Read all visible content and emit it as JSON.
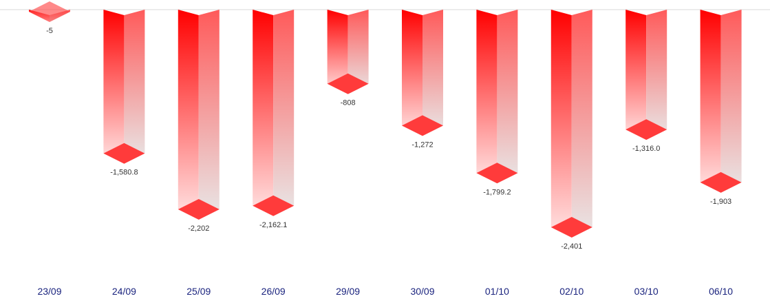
{
  "chart_data": {
    "type": "bar",
    "title": "",
    "xlabel": "",
    "ylabel": "",
    "categories": [
      "23/09",
      "24/09",
      "25/09",
      "26/09",
      "29/09",
      "30/09",
      "01/10",
      "02/10",
      "03/10",
      "06/10"
    ],
    "values": [
      -5,
      -1580.8,
      -2202,
      -2162.1,
      -808,
      -1272,
      -1799.2,
      -2401,
      -1316.0,
      -1903
    ],
    "value_labels": [
      "-5",
      "-1,580.8",
      "-2,202",
      "-2,162.1",
      "-808",
      "-1,272",
      "-1,799.2",
      "-2,401",
      "-1,316.0",
      "-1,903"
    ],
    "ylim": [
      -2401,
      0
    ],
    "grid": false,
    "legend": "none",
    "colors": {
      "bar_front_top": "#ff0000",
      "bar_front_bottom": "#ffe6e6",
      "bar_side_top": "#ff5a5a",
      "bar_side_bottom": "#e8e8e8",
      "bar_cap": "#ff3b3b",
      "baseline": "#d9d9d9",
      "category_text": "#1a237e",
      "value_text": "#333333"
    }
  }
}
